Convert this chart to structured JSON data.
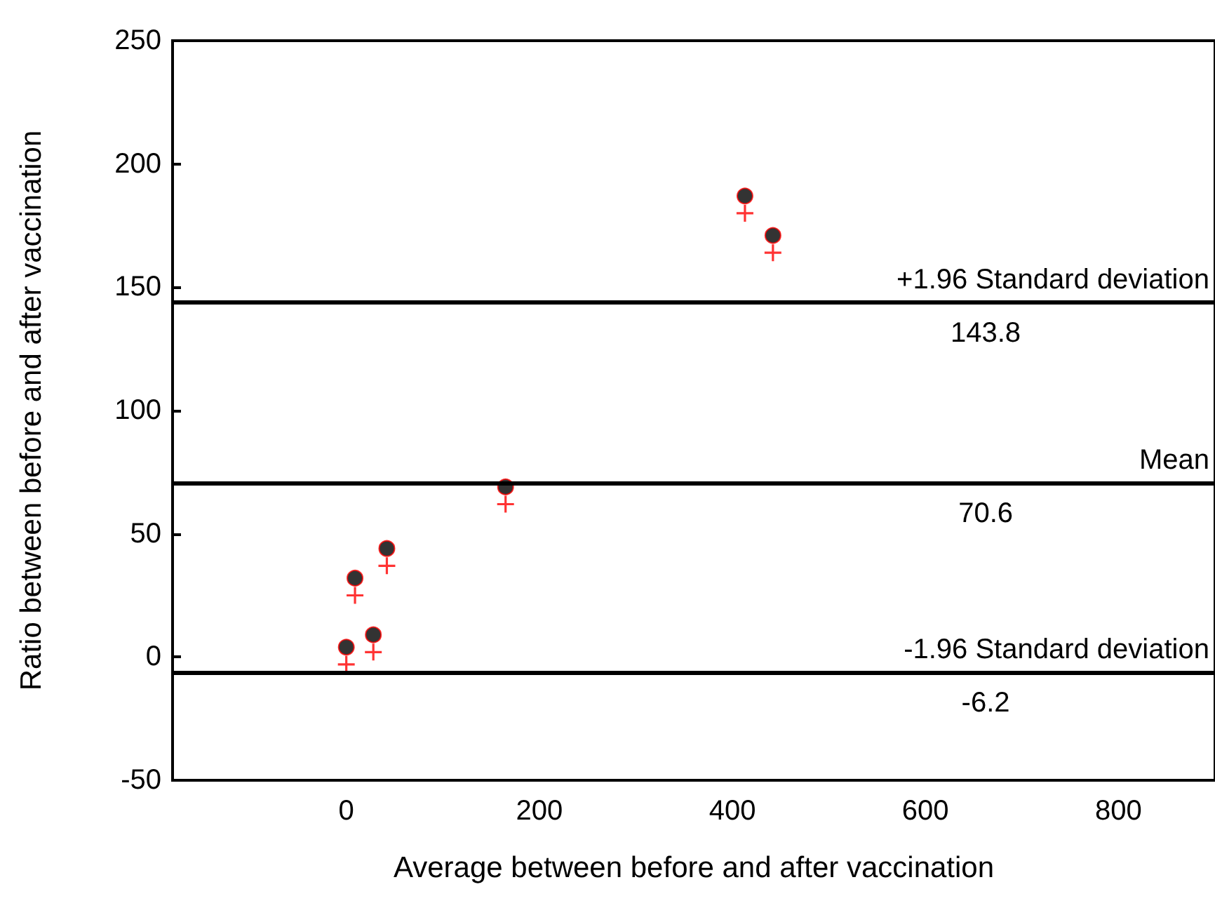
{
  "chart_data": {
    "type": "scatter",
    "xlabel": "Average between before and after vaccination",
    "ylabel": "Ratio between before and after vaccination",
    "series": [
      {
        "color": "#000000",
        "marker": "circle",
        "x": [
          0,
          9,
          28,
          42,
          165,
          413,
          442
        ],
        "values": [
          4,
          32,
          9,
          44,
          69,
          187,
          171
        ]
      },
      {
        "color": "#ff0000",
        "marker": "cross",
        "x": [
          0,
          9,
          28,
          42,
          165,
          413,
          442
        ],
        "values": [
          -3,
          25,
          2,
          37,
          62,
          180,
          164
        ]
      }
    ],
    "xlim": [
      -180,
      900
    ],
    "xticks": [
      0,
      200,
      400,
      600,
      800
    ],
    "ylim": [
      -50,
      250
    ],
    "yticks": [
      -50,
      0,
      50,
      100,
      150,
      200,
      250
    ],
    "ref_lines": [
      {
        "axis": "y",
        "value": 143.8,
        "label": "+1.96 Standard deviation"
      },
      {
        "axis": "y",
        "value": 70.6,
        "label": "Mean"
      },
      {
        "axis": "y",
        "value": -6.2,
        "label": "-1.96 Standard deviation"
      }
    ],
    "annotations": [
      {
        "text": "143.8",
        "y": 143.8
      },
      {
        "text": "70.6",
        "y": 70.6
      },
      {
        "text": "-6.2",
        "y": -6.2
      }
    ],
    "grid": false
  }
}
